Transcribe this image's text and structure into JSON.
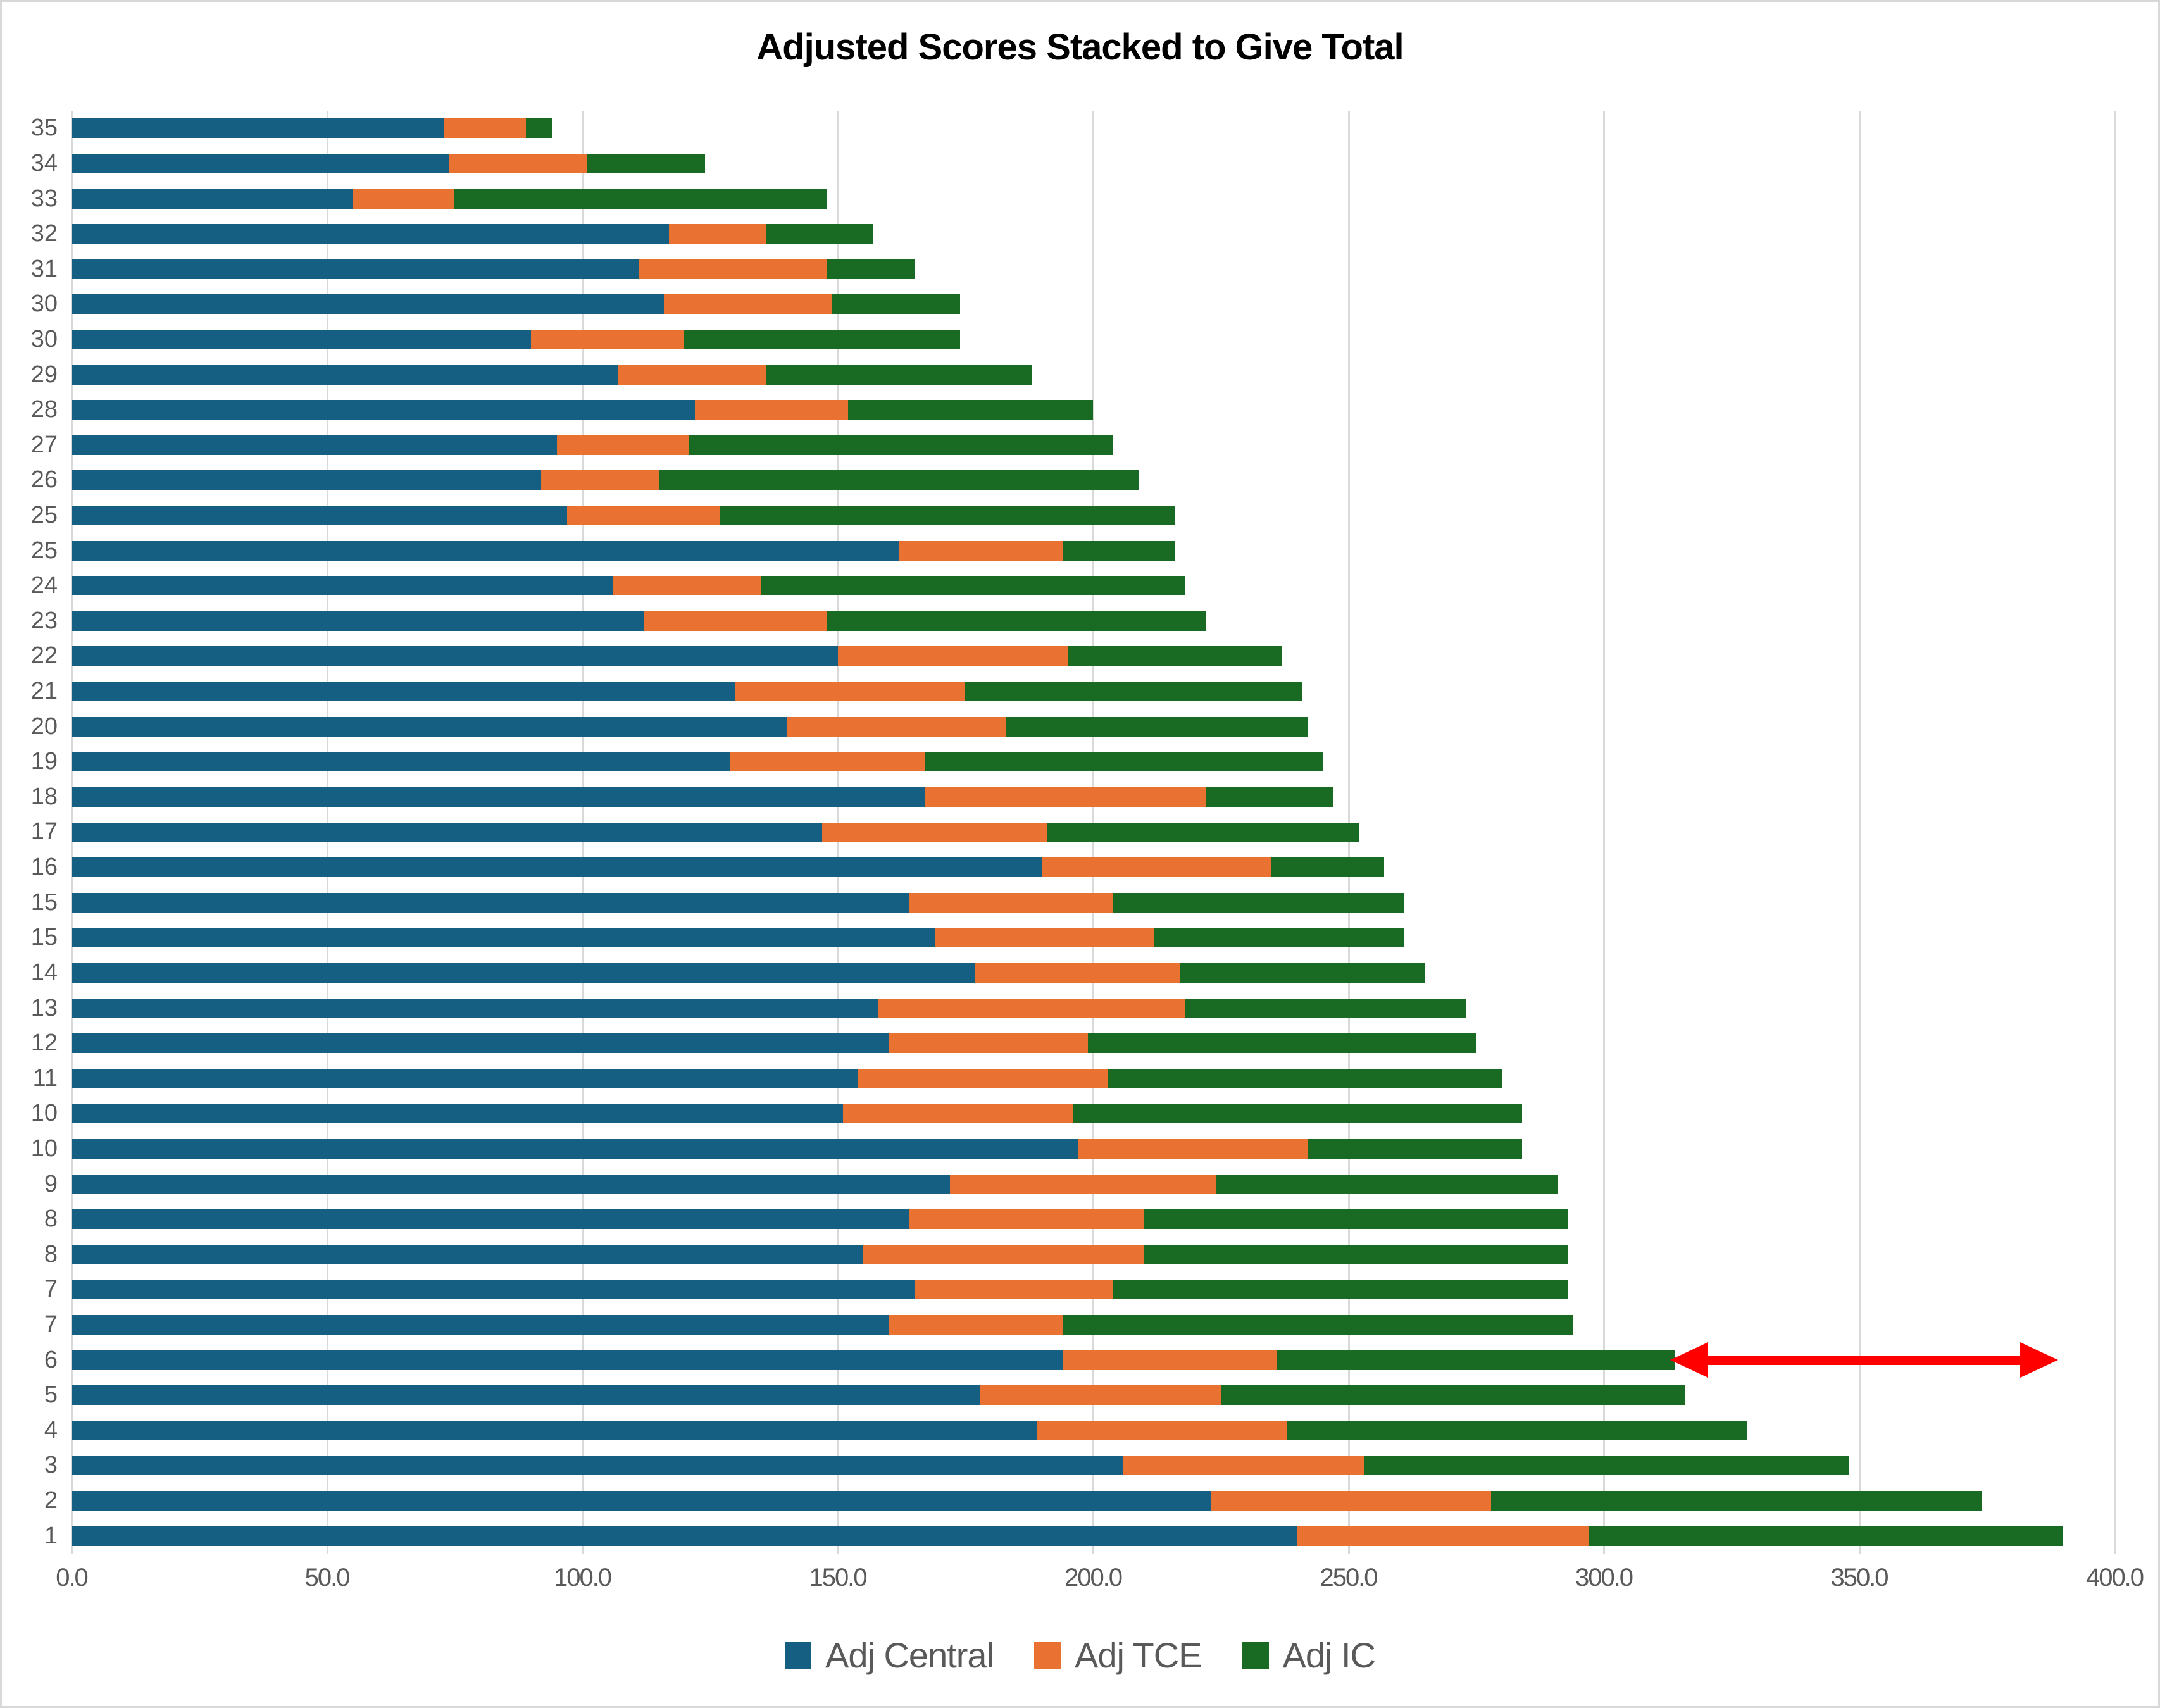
{
  "chart_data": {
    "type": "bar",
    "orientation": "horizontal",
    "stacked": true,
    "title": "Adjusted Scores Stacked to Give Total",
    "xlabel": "",
    "ylabel": "",
    "xlim": [
      0,
      400
    ],
    "grid": true,
    "legend_position": "bottom",
    "x_ticks": [
      "0.0",
      "50.0",
      "100.0",
      "150.0",
      "200.0",
      "250.0",
      "300.0",
      "350.0",
      "400.0"
    ],
    "categories": [
      "35",
      "34",
      "33",
      "32",
      "31",
      "30",
      "30",
      "29",
      "28",
      "27",
      "26",
      "25",
      "25",
      "24",
      "23",
      "22",
      "21",
      "20",
      "19",
      "18",
      "17",
      "16",
      "15",
      "15",
      "14",
      "13",
      "12",
      "11",
      "10",
      "10",
      "9",
      "8",
      "8",
      "7",
      "7",
      "6",
      "5",
      "4",
      "3",
      "2",
      "1"
    ],
    "series": [
      {
        "name": "Adj Central",
        "color": "#156082",
        "values": [
          73,
          74,
          55,
          117,
          111,
          116,
          90,
          107,
          122,
          95,
          92,
          97,
          162,
          106,
          112,
          150,
          130,
          140,
          129,
          167,
          147,
          190,
          164,
          169,
          177,
          158,
          160,
          154,
          151,
          197,
          172,
          164,
          155,
          165,
          160,
          194,
          178,
          189,
          206,
          223,
          240
        ]
      },
      {
        "name": "Adj TCE",
        "color": "#E97132",
        "values": [
          16,
          27,
          20,
          19,
          37,
          33,
          30,
          29,
          30,
          26,
          23,
          30,
          32,
          29,
          36,
          45,
          45,
          43,
          38,
          55,
          44,
          45,
          40,
          43,
          40,
          60,
          39,
          49,
          45,
          45,
          52,
          46,
          55,
          39,
          34,
          42,
          47,
          49,
          47,
          55,
          57
        ]
      },
      {
        "name": "Adj IC",
        "color": "#196B24",
        "values": [
          5,
          23,
          73,
          21,
          17,
          25,
          54,
          52,
          48,
          83,
          94,
          89,
          22,
          83,
          74,
          42,
          66,
          59,
          78,
          25,
          61,
          22,
          57,
          49,
          48,
          55,
          76,
          77,
          88,
          42,
          67,
          83,
          83,
          89,
          100,
          78,
          91,
          90,
          95,
          96,
          93
        ]
      }
    ],
    "annotation_arrow": {
      "category": "6",
      "from": 313,
      "to": 389,
      "color": "#ff0000"
    },
    "grid_color": "#d9d9d9",
    "text_color": "#595959"
  }
}
